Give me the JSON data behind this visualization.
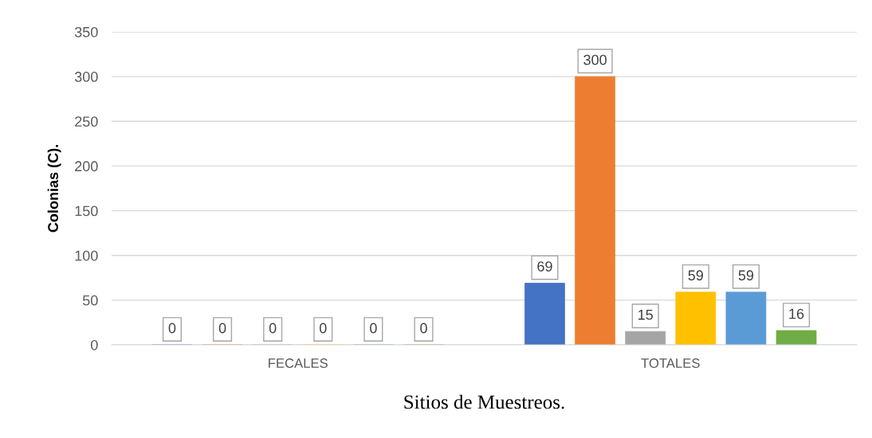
{
  "chart_data": {
    "type": "bar",
    "xlabel": "Sitios de Muestreos.",
    "ylabel": "Colonias (C).",
    "categories": [
      "FECALES",
      "TOTALES"
    ],
    "series": [
      {
        "color": "#4472c4",
        "values": [
          0,
          69
        ]
      },
      {
        "color": "#ed7d31",
        "values": [
          0,
          300
        ]
      },
      {
        "color": "#a5a5a5",
        "values": [
          0,
          15
        ]
      },
      {
        "color": "#ffc000",
        "values": [
          0,
          59
        ]
      },
      {
        "color": "#5b9bd5",
        "values": [
          0,
          59
        ]
      },
      {
        "color": "#70ad47",
        "values": [
          0,
          16
        ]
      }
    ],
    "ylim": [
      0,
      350
    ],
    "yticks": [
      0,
      50,
      100,
      150,
      200,
      250,
      300,
      350
    ],
    "grid": "y",
    "data_labels": true,
    "legend": false
  }
}
